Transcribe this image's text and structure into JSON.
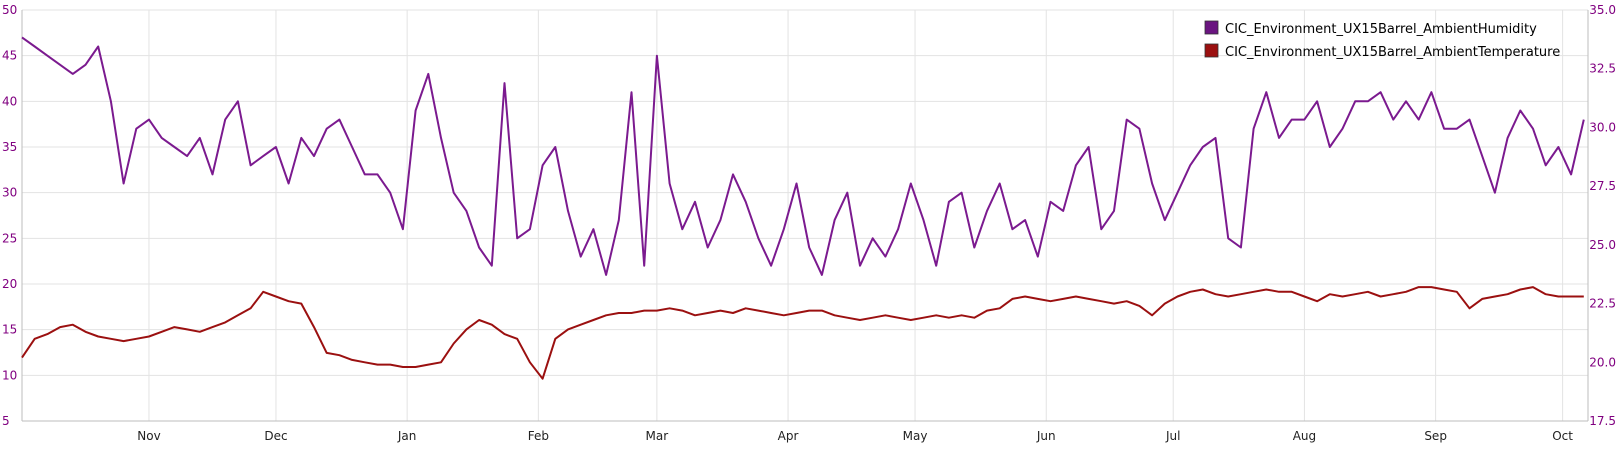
{
  "chart_data": {
    "type": "line",
    "title": "",
    "xlabel": "",
    "x_ticks": [
      "Nov",
      "Dec",
      "Jan",
      "Feb",
      "Mar",
      "Apr",
      "May",
      "Jun",
      "Jul",
      "Aug",
      "Sep",
      "Oct"
    ],
    "x_tick_dates": [
      "2017-11-01",
      "2017-12-01",
      "2018-01-01",
      "2018-02-01",
      "2018-03-01",
      "2018-04-01",
      "2018-05-01",
      "2018-06-01",
      "2018-07-01",
      "2018-08-01",
      "2018-09-01",
      "2018-10-01"
    ],
    "xlim": [
      "2017-10-02",
      "2018-10-07"
    ],
    "grid": true,
    "legend_position": "top-right",
    "y_left": {
      "label": "",
      "ylim": [
        5,
        50
      ],
      "ticks": [
        "5",
        "10",
        "15",
        "20",
        "25",
        "30",
        "35",
        "40",
        "45",
        "50"
      ],
      "tick_values": [
        5,
        10,
        15,
        20,
        25,
        30,
        35,
        40,
        45,
        50
      ],
      "color": "#800080"
    },
    "y_right": {
      "label": "",
      "ylim": [
        17.5,
        35.0
      ],
      "ticks": [
        "17.5",
        "20.0",
        "22.5",
        "25.0",
        "27.5",
        "30.0",
        "32.5",
        "35.0"
      ],
      "tick_values": [
        17.5,
        20.0,
        22.5,
        25.0,
        27.5,
        30.0,
        32.5,
        35.0
      ],
      "color": "#800080"
    },
    "series": [
      {
        "name": "CIC_Environment_UX15Barrel_AmbientHumidity",
        "color": "#7b1a8f",
        "axis": "left",
        "x": [
          "2017-10-02",
          "2017-10-05",
          "2017-10-08",
          "2017-10-11",
          "2017-10-14",
          "2017-10-17",
          "2017-10-20",
          "2017-10-23",
          "2017-10-26",
          "2017-10-29",
          "2017-11-01",
          "2017-11-04",
          "2017-11-07",
          "2017-11-10",
          "2017-11-13",
          "2017-11-16",
          "2017-11-19",
          "2017-11-22",
          "2017-11-25",
          "2017-11-28",
          "2017-12-01",
          "2017-12-04",
          "2017-12-07",
          "2017-12-10",
          "2017-12-13",
          "2017-12-16",
          "2017-12-19",
          "2017-12-22",
          "2017-12-25",
          "2017-12-28",
          "2017-12-31",
          "2018-01-03",
          "2018-01-06",
          "2018-01-09",
          "2018-01-12",
          "2018-01-15",
          "2018-01-18",
          "2018-01-21",
          "2018-01-24",
          "2018-01-27",
          "2018-01-30",
          "2018-02-02",
          "2018-02-05",
          "2018-02-08",
          "2018-02-11",
          "2018-02-14",
          "2018-02-17",
          "2018-02-20",
          "2018-02-23",
          "2018-02-26",
          "2018-03-01",
          "2018-03-04",
          "2018-03-07",
          "2018-03-10",
          "2018-03-13",
          "2018-03-16",
          "2018-03-19",
          "2018-03-22",
          "2018-03-25",
          "2018-03-28",
          "2018-03-31",
          "2018-04-03",
          "2018-04-06",
          "2018-04-09",
          "2018-04-12",
          "2018-04-15",
          "2018-04-18",
          "2018-04-21",
          "2018-04-24",
          "2018-04-27",
          "2018-04-30",
          "2018-05-03",
          "2018-05-06",
          "2018-05-09",
          "2018-05-12",
          "2018-05-15",
          "2018-05-18",
          "2018-05-21",
          "2018-05-24",
          "2018-05-27",
          "2018-05-30",
          "2018-06-02",
          "2018-06-05",
          "2018-06-08",
          "2018-06-11",
          "2018-06-14",
          "2018-06-17",
          "2018-06-20",
          "2018-06-23",
          "2018-06-26",
          "2018-06-29",
          "2018-07-02",
          "2018-07-05",
          "2018-07-08",
          "2018-07-11",
          "2018-07-14",
          "2018-07-17",
          "2018-07-20",
          "2018-07-23",
          "2018-07-26",
          "2018-07-29",
          "2018-08-01",
          "2018-08-04",
          "2018-08-07",
          "2018-08-10",
          "2018-08-13",
          "2018-08-16",
          "2018-08-19",
          "2018-08-22",
          "2018-08-25",
          "2018-08-28",
          "2018-08-31",
          "2018-09-03",
          "2018-09-06",
          "2018-09-09",
          "2018-09-12",
          "2018-09-15",
          "2018-09-18",
          "2018-09-21",
          "2018-09-24",
          "2018-09-27",
          "2018-09-30",
          "2018-10-03",
          "2018-10-06"
        ],
        "values": [
          47,
          46,
          45,
          44,
          43,
          44,
          46,
          40,
          31,
          37,
          38,
          36,
          35,
          34,
          36,
          32,
          38,
          40,
          33,
          34,
          35,
          31,
          36,
          34,
          37,
          38,
          35,
          32,
          32,
          30,
          26,
          39,
          43,
          36,
          30,
          28,
          24,
          22,
          42,
          25,
          26,
          33,
          35,
          28,
          23,
          26,
          21,
          27,
          41,
          22,
          45,
          31,
          26,
          29,
          24,
          27,
          32,
          29,
          25,
          22,
          26,
          31,
          24,
          21,
          27,
          30,
          22,
          25,
          23,
          26,
          31,
          27,
          22,
          29,
          30,
          24,
          28,
          31,
          26,
          27,
          23,
          29,
          28,
          33,
          35,
          26,
          28,
          38,
          37,
          31,
          27,
          30,
          33,
          35,
          36,
          25,
          24,
          37,
          41,
          36,
          38,
          38,
          40,
          35,
          37,
          40,
          40,
          41,
          38,
          40,
          38,
          41,
          37,
          37,
          38,
          34,
          30,
          36,
          39,
          37,
          33,
          35,
          32,
          38
        ]
      },
      {
        "name": "CIC_Environment_UX15Barrel_AmbientTemperature",
        "color": "#9b1010",
        "axis": "right",
        "x": [
          "2017-10-02",
          "2017-10-05",
          "2017-10-08",
          "2017-10-11",
          "2017-10-14",
          "2017-10-17",
          "2017-10-20",
          "2017-10-23",
          "2017-10-26",
          "2017-10-29",
          "2017-11-01",
          "2017-11-04",
          "2017-11-07",
          "2017-11-10",
          "2017-11-13",
          "2017-11-16",
          "2017-11-19",
          "2017-11-22",
          "2017-11-25",
          "2017-11-28",
          "2017-12-01",
          "2017-12-04",
          "2017-12-07",
          "2017-12-10",
          "2017-12-13",
          "2017-12-16",
          "2017-12-19",
          "2017-12-22",
          "2017-12-25",
          "2017-12-28",
          "2017-12-31",
          "2018-01-03",
          "2018-01-06",
          "2018-01-09",
          "2018-01-12",
          "2018-01-15",
          "2018-01-18",
          "2018-01-21",
          "2018-01-24",
          "2018-01-27",
          "2018-01-30",
          "2018-02-02",
          "2018-02-05",
          "2018-02-08",
          "2018-02-11",
          "2018-02-14",
          "2018-02-17",
          "2018-02-20",
          "2018-02-23",
          "2018-02-26",
          "2018-03-01",
          "2018-03-04",
          "2018-03-07",
          "2018-03-10",
          "2018-03-13",
          "2018-03-16",
          "2018-03-19",
          "2018-03-22",
          "2018-03-25",
          "2018-03-28",
          "2018-03-31",
          "2018-04-03",
          "2018-04-06",
          "2018-04-09",
          "2018-04-12",
          "2018-04-15",
          "2018-04-18",
          "2018-04-21",
          "2018-04-24",
          "2018-04-27",
          "2018-04-30",
          "2018-05-03",
          "2018-05-06",
          "2018-05-09",
          "2018-05-12",
          "2018-05-15",
          "2018-05-18",
          "2018-05-21",
          "2018-05-24",
          "2018-05-27",
          "2018-05-30",
          "2018-06-02",
          "2018-06-05",
          "2018-06-08",
          "2018-06-11",
          "2018-06-14",
          "2018-06-17",
          "2018-06-20",
          "2018-06-23",
          "2018-06-26",
          "2018-06-29",
          "2018-07-02",
          "2018-07-05",
          "2018-07-08",
          "2018-07-11",
          "2018-07-14",
          "2018-07-17",
          "2018-07-20",
          "2018-07-23",
          "2018-07-26",
          "2018-07-29",
          "2018-08-01",
          "2018-08-04",
          "2018-08-07",
          "2018-08-10",
          "2018-08-13",
          "2018-08-16",
          "2018-08-19",
          "2018-08-22",
          "2018-08-25",
          "2018-08-28",
          "2018-08-31",
          "2018-09-03",
          "2018-09-06",
          "2018-09-09",
          "2018-09-12",
          "2018-09-15",
          "2018-09-18",
          "2018-09-21",
          "2018-09-24",
          "2018-09-27",
          "2018-09-30",
          "2018-10-03",
          "2018-10-06"
        ],
        "values": [
          20.2,
          21.0,
          21.2,
          21.5,
          21.6,
          21.3,
          21.1,
          21.0,
          20.9,
          21.0,
          21.1,
          21.3,
          21.5,
          21.4,
          21.3,
          21.5,
          21.7,
          22.0,
          22.3,
          23.0,
          22.8,
          22.6,
          22.5,
          21.5,
          20.4,
          20.3,
          20.1,
          20.0,
          19.9,
          19.9,
          19.8,
          19.8,
          19.9,
          20.0,
          20.8,
          21.4,
          21.8,
          21.6,
          21.2,
          21.0,
          20.0,
          19.3,
          21.0,
          21.4,
          21.6,
          21.8,
          22.0,
          22.1,
          22.1,
          22.2,
          22.2,
          22.3,
          22.2,
          22.0,
          22.1,
          22.2,
          22.1,
          22.3,
          22.2,
          22.1,
          22.0,
          22.1,
          22.2,
          22.2,
          22.0,
          21.9,
          21.8,
          21.9,
          22.0,
          21.9,
          21.8,
          21.9,
          22.0,
          21.9,
          22.0,
          21.9,
          22.2,
          22.3,
          22.7,
          22.8,
          22.7,
          22.6,
          22.7,
          22.8,
          22.7,
          22.6,
          22.5,
          22.6,
          22.4,
          22.0,
          22.5,
          22.8,
          23.0,
          23.1,
          22.9,
          22.8,
          22.9,
          23.0,
          23.1,
          23.0,
          23.0,
          22.8,
          22.6,
          22.9,
          22.8,
          22.9,
          23.0,
          22.8,
          22.9,
          23.0,
          23.2,
          23.2,
          23.1,
          23.0,
          22.3,
          22.7,
          22.8,
          22.9,
          23.1,
          23.2,
          22.9,
          22.8,
          22.8,
          22.8
        ]
      }
    ]
  }
}
